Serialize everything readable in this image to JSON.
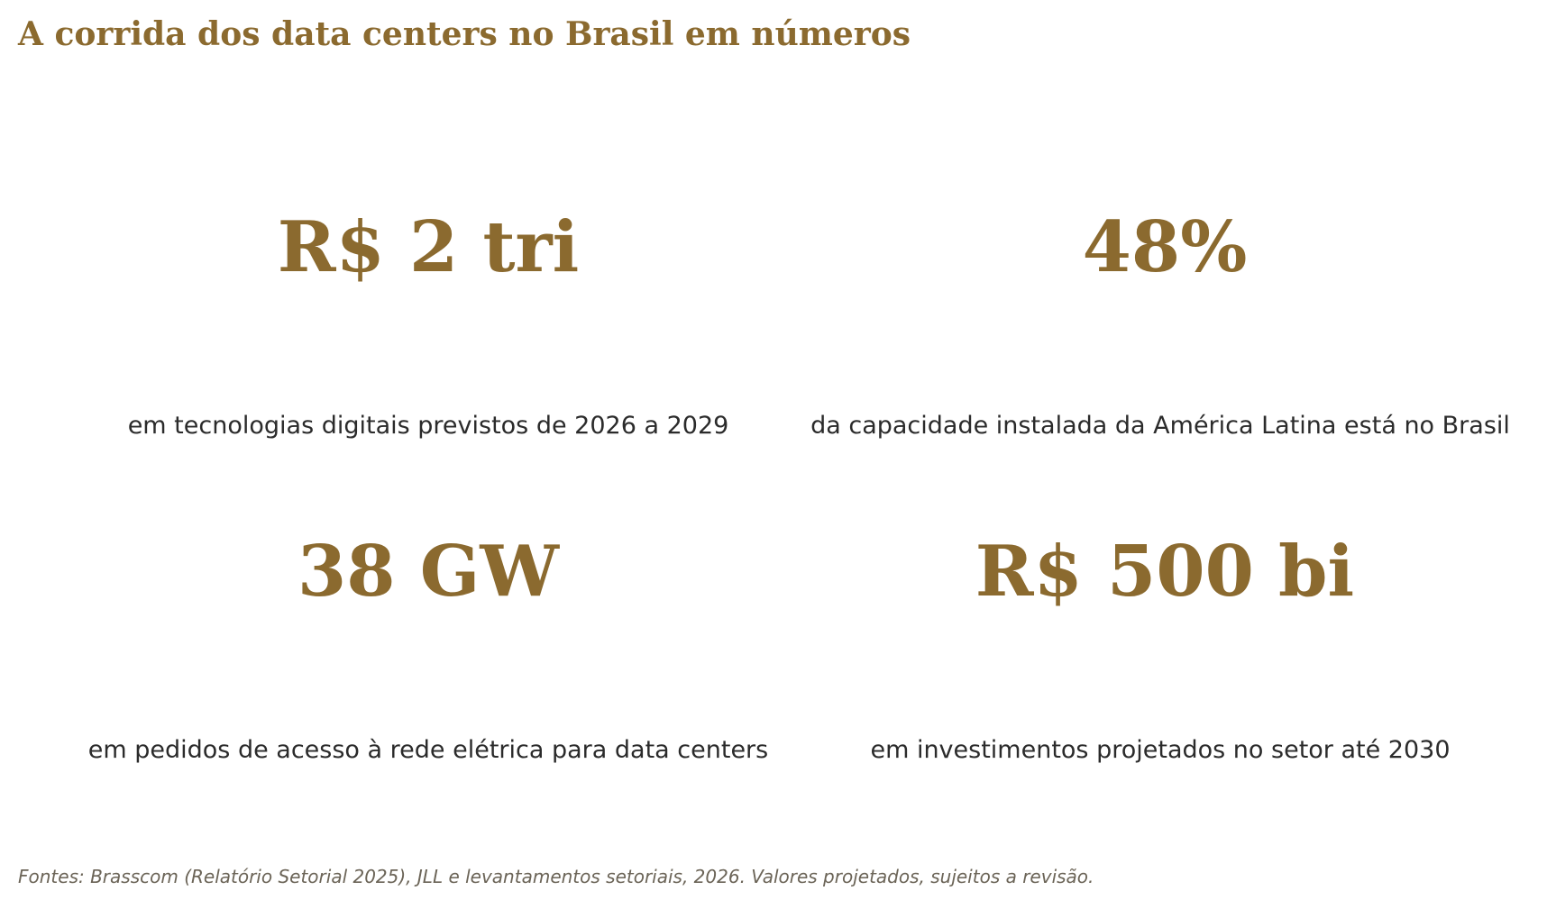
{
  "title": "A corrida dos data centers no Brasil em números",
  "accent_color": "#8b6a2f",
  "text_color": "#2b2b2b",
  "stats": [
    {
      "value": "R$ 2 tri",
      "description": "em tecnologias digitais previstos de 2026 a 2029"
    },
    {
      "value": "48%",
      "description": "da capacidade instalada da América Latina está no Brasil"
    },
    {
      "value": "38 GW",
      "description": "em pedidos de acesso à rede elétrica para data centers"
    },
    {
      "value": "R$ 500 bi",
      "description": "em investimentos projetados no setor até 2030"
    }
  ],
  "footnote": "Fontes: Brasscom (Relatório Setorial 2025), JLL e levantamentos setoriais, 2026. Valores projetados, sujeitos a revisão."
}
